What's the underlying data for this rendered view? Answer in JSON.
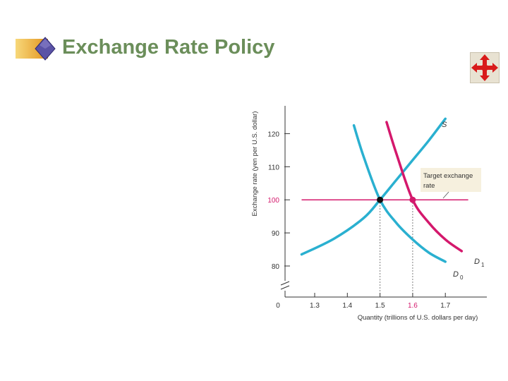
{
  "slide": {
    "title": "Exchange Rate Policy"
  },
  "colors": {
    "title": "#6b8e5a",
    "demand_d0": "#2ab0d0",
    "supply_demand_d1": "#d4186c",
    "target_line": "#d4186c",
    "label_box": "#f6f0de"
  },
  "icons": {
    "title_bullet": "diamond-bullet-icon",
    "move_button": "move-arrows-icon"
  },
  "chart_data": {
    "type": "line",
    "xlabel": "Quantity (trillions of U.S. dollars per day)",
    "ylabel": "Exchange rate (yen per U.S. dollar)",
    "xlim": [
      1.2,
      1.8
    ],
    "ylim": [
      73,
      128
    ],
    "x_ticks": [
      1.3,
      1.4,
      1.5,
      1.6,
      1.7
    ],
    "y_ticks": [
      80,
      90,
      100,
      110,
      120
    ],
    "origin_label": "0",
    "axis_break": true,
    "grid": false,
    "highlight_tick_color": "#d4186c",
    "series": [
      {
        "name": "S",
        "color": "#2ab0d0",
        "points": [
          [
            1.26,
            83.5
          ],
          [
            1.36,
            88.3
          ],
          [
            1.45,
            94.5
          ],
          [
            1.5,
            100
          ],
          [
            1.55,
            106
          ],
          [
            1.6,
            112
          ],
          [
            1.65,
            118
          ],
          [
            1.7,
            124.5
          ]
        ]
      },
      {
        "name": "D0",
        "color": "#2ab0d0",
        "points": [
          [
            1.42,
            122.5
          ],
          [
            1.45,
            113
          ],
          [
            1.5,
            100
          ],
          [
            1.55,
            93
          ],
          [
            1.6,
            88
          ],
          [
            1.65,
            84
          ],
          [
            1.7,
            81.3
          ]
        ]
      },
      {
        "name": "D1",
        "color": "#d4186c",
        "points": [
          [
            1.52,
            123.5
          ],
          [
            1.55,
            114
          ],
          [
            1.6,
            100
          ],
          [
            1.65,
            93
          ],
          [
            1.7,
            88
          ],
          [
            1.75,
            84.5
          ]
        ]
      }
    ],
    "target_rate": {
      "y": 100,
      "x_range": [
        1.26,
        1.77
      ],
      "label_line1": "Target exchange",
      "label_line2": "rate"
    },
    "equilibria": [
      {
        "x": 1.5,
        "y": 100,
        "color": "#111111"
      },
      {
        "x": 1.6,
        "y": 100,
        "color": "#d4186c"
      }
    ],
    "curve_labels": {
      "s": "S",
      "d0_letter": "D",
      "d0_sub": "0",
      "d1_letter": "D",
      "d1_sub": "1"
    }
  }
}
